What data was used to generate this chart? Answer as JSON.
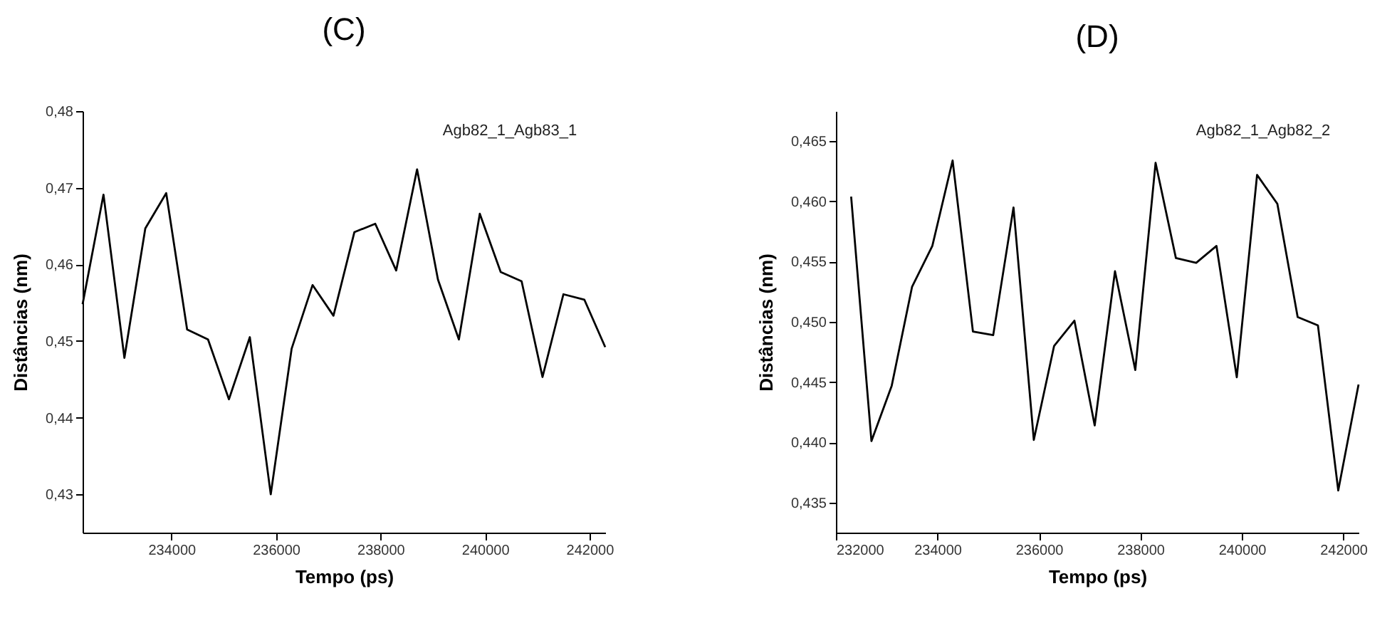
{
  "chart_data": [
    {
      "type": "line",
      "title": "(C)",
      "xlabel": "Tempo (ps)",
      "ylabel": "Distâncias (nm)",
      "annotations": [
        "Agb82_1_Agb83_1"
      ],
      "x": [
        232300,
        232700,
        233100,
        233500,
        233900,
        234300,
        234700,
        235100,
        235500,
        235900,
        236300,
        236700,
        237100,
        237500,
        237900,
        238300,
        238700,
        239100,
        239500,
        239900,
        240300,
        240700,
        241100,
        241500,
        241900,
        242300
      ],
      "series": [
        {
          "color": "#000000",
          "values": [
            0.4548,
            0.4691,
            0.4478,
            0.4647,
            0.4693,
            0.4515,
            0.4502,
            0.4424,
            0.4505,
            0.43,
            0.449,
            0.4573,
            0.4533,
            0.4642,
            0.4653,
            0.4592,
            0.4724,
            0.458,
            0.4502,
            0.4666,
            0.459,
            0.4578,
            0.4453,
            0.4561,
            0.4554,
            0.4492
          ]
        }
      ],
      "xlim": [
        232300,
        242300
      ],
      "xticks": [
        234000,
        236000,
        238000,
        240000,
        242000
      ],
      "ylim": [
        0.425,
        0.48
      ],
      "yticks": [
        {
          "value": 0.43,
          "label": "0,43"
        },
        {
          "value": 0.44,
          "label": "0,44"
        },
        {
          "value": 0.45,
          "label": "0,45"
        },
        {
          "value": 0.46,
          "label": "0,46"
        },
        {
          "value": 0.47,
          "label": "0,47"
        },
        {
          "value": 0.48,
          "label": "0,48"
        }
      ],
      "grid": false,
      "marker": "none",
      "line_style": "solid"
    },
    {
      "type": "line",
      "title": "(D)",
      "xlabel": "Tempo (ps)",
      "ylabel": "Distâncias (nm)",
      "annotations": [
        "Agb82_1_Agb82_2"
      ],
      "x": [
        232300,
        232700,
        233100,
        233500,
        233900,
        234300,
        234700,
        235100,
        235500,
        235900,
        236300,
        236700,
        237100,
        237500,
        237900,
        238300,
        238700,
        239100,
        239500,
        239900,
        240300,
        240700,
        241100,
        241500,
        241900,
        242300
      ],
      "series": [
        {
          "color": "#000000",
          "values": [
            0.4604,
            0.4401,
            0.4447,
            0.4529,
            0.4563,
            0.4634,
            0.4492,
            0.4489,
            0.4595,
            0.4402,
            0.448,
            0.4501,
            0.4414,
            0.4542,
            0.446,
            0.4632,
            0.4553,
            0.4549,
            0.4563,
            0.4454,
            0.4622,
            0.4598,
            0.4504,
            0.4497,
            0.436,
            0.4448
          ]
        }
      ],
      "xlim": [
        232000,
        242300
      ],
      "xticks": [
        232000,
        234000,
        236000,
        238000,
        240000,
        242000
      ],
      "ylim": [
        0.4325,
        0.4675
      ],
      "yticks": [
        {
          "value": 0.435,
          "label": "0,435"
        },
        {
          "value": 0.44,
          "label": "0,440"
        },
        {
          "value": 0.445,
          "label": "0,445"
        },
        {
          "value": 0.45,
          "label": "0,450"
        },
        {
          "value": 0.455,
          "label": "0,455"
        },
        {
          "value": 0.46,
          "label": "0,460"
        },
        {
          "value": 0.465,
          "label": "0,465"
        }
      ],
      "grid": false,
      "marker": "none",
      "line_style": "solid"
    }
  ]
}
